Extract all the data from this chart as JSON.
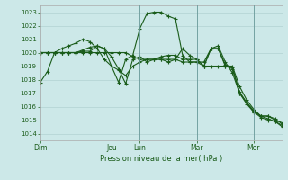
{
  "background_color": "#cce8e8",
  "grid_color": "#aacccc",
  "line_color": "#1a5c1a",
  "title": "Pression niveau de la mer( hPa )",
  "ylim": [
    1013.5,
    1023.5
  ],
  "yticks": [
    1014,
    1015,
    1016,
    1017,
    1018,
    1019,
    1020,
    1021,
    1022,
    1023
  ],
  "day_labels": [
    "Dim",
    "Jeu",
    "Lun",
    "Mar",
    "Mer"
  ],
  "day_positions": [
    0,
    10,
    14,
    22,
    30
  ],
  "xlim": [
    0,
    34
  ],
  "series": [
    [
      1017.8,
      1018.6,
      1020.0,
      1020.0,
      1020.0,
      1020.0,
      1020.1,
      1020.1,
      1020.5,
      1020.3,
      1019.0,
      1017.8,
      1019.5,
      1019.8,
      1021.8,
      1022.9,
      1023.0,
      1023.0,
      1022.7,
      1022.5,
      1019.8,
      1019.3,
      1019.3,
      1019.3,
      1020.3,
      1020.3,
      1019.1,
      1018.9,
      1017.1,
      1016.3,
      1015.7,
      1015.3,
      1015.3,
      1015.1,
      1014.7
    ],
    [
      1020.0,
      1020.0,
      1020.0,
      1020.0,
      1020.0,
      1020.0,
      1020.0,
      1020.0,
      1020.0,
      1020.0,
      1020.0,
      1020.0,
      1020.0,
      1019.7,
      1019.5,
      1019.5,
      1019.5,
      1019.5,
      1019.5,
      1019.5,
      1019.3,
      1019.3,
      1019.3,
      1019.0,
      1019.0,
      1019.0,
      1019.0,
      1019.0,
      1017.5,
      1016.5,
      1015.8,
      1015.3,
      1015.3,
      1015.0,
      1014.8
    ],
    [
      1020.0,
      1020.0,
      1020.0,
      1020.3,
      1020.5,
      1020.7,
      1021.0,
      1020.8,
      1020.3,
      1019.5,
      1019.0,
      1018.7,
      1018.3,
      1019.0,
      1019.3,
      1019.5,
      1019.5,
      1019.7,
      1019.8,
      1019.8,
      1019.5,
      1019.5,
      1019.5,
      1019.0,
      1020.3,
      1020.3,
      1019.0,
      1018.8,
      1017.0,
      1016.2,
      1015.6,
      1015.2,
      1015.0,
      1014.9,
      1014.6
    ],
    [
      1020.0,
      1020.0,
      1020.0,
      1020.0,
      1020.0,
      1020.0,
      1020.2,
      1020.4,
      1020.5,
      1020.3,
      1019.7,
      1018.8,
      1017.7,
      1019.5,
      1019.7,
      1019.3,
      1019.5,
      1019.5,
      1019.3,
      1019.5,
      1020.3,
      1019.8,
      1019.5,
      1019.0,
      1020.3,
      1020.5,
      1019.3,
      1018.5,
      1017.0,
      1016.3,
      1015.6,
      1015.3,
      1015.1,
      1014.9,
      1014.5
    ]
  ]
}
